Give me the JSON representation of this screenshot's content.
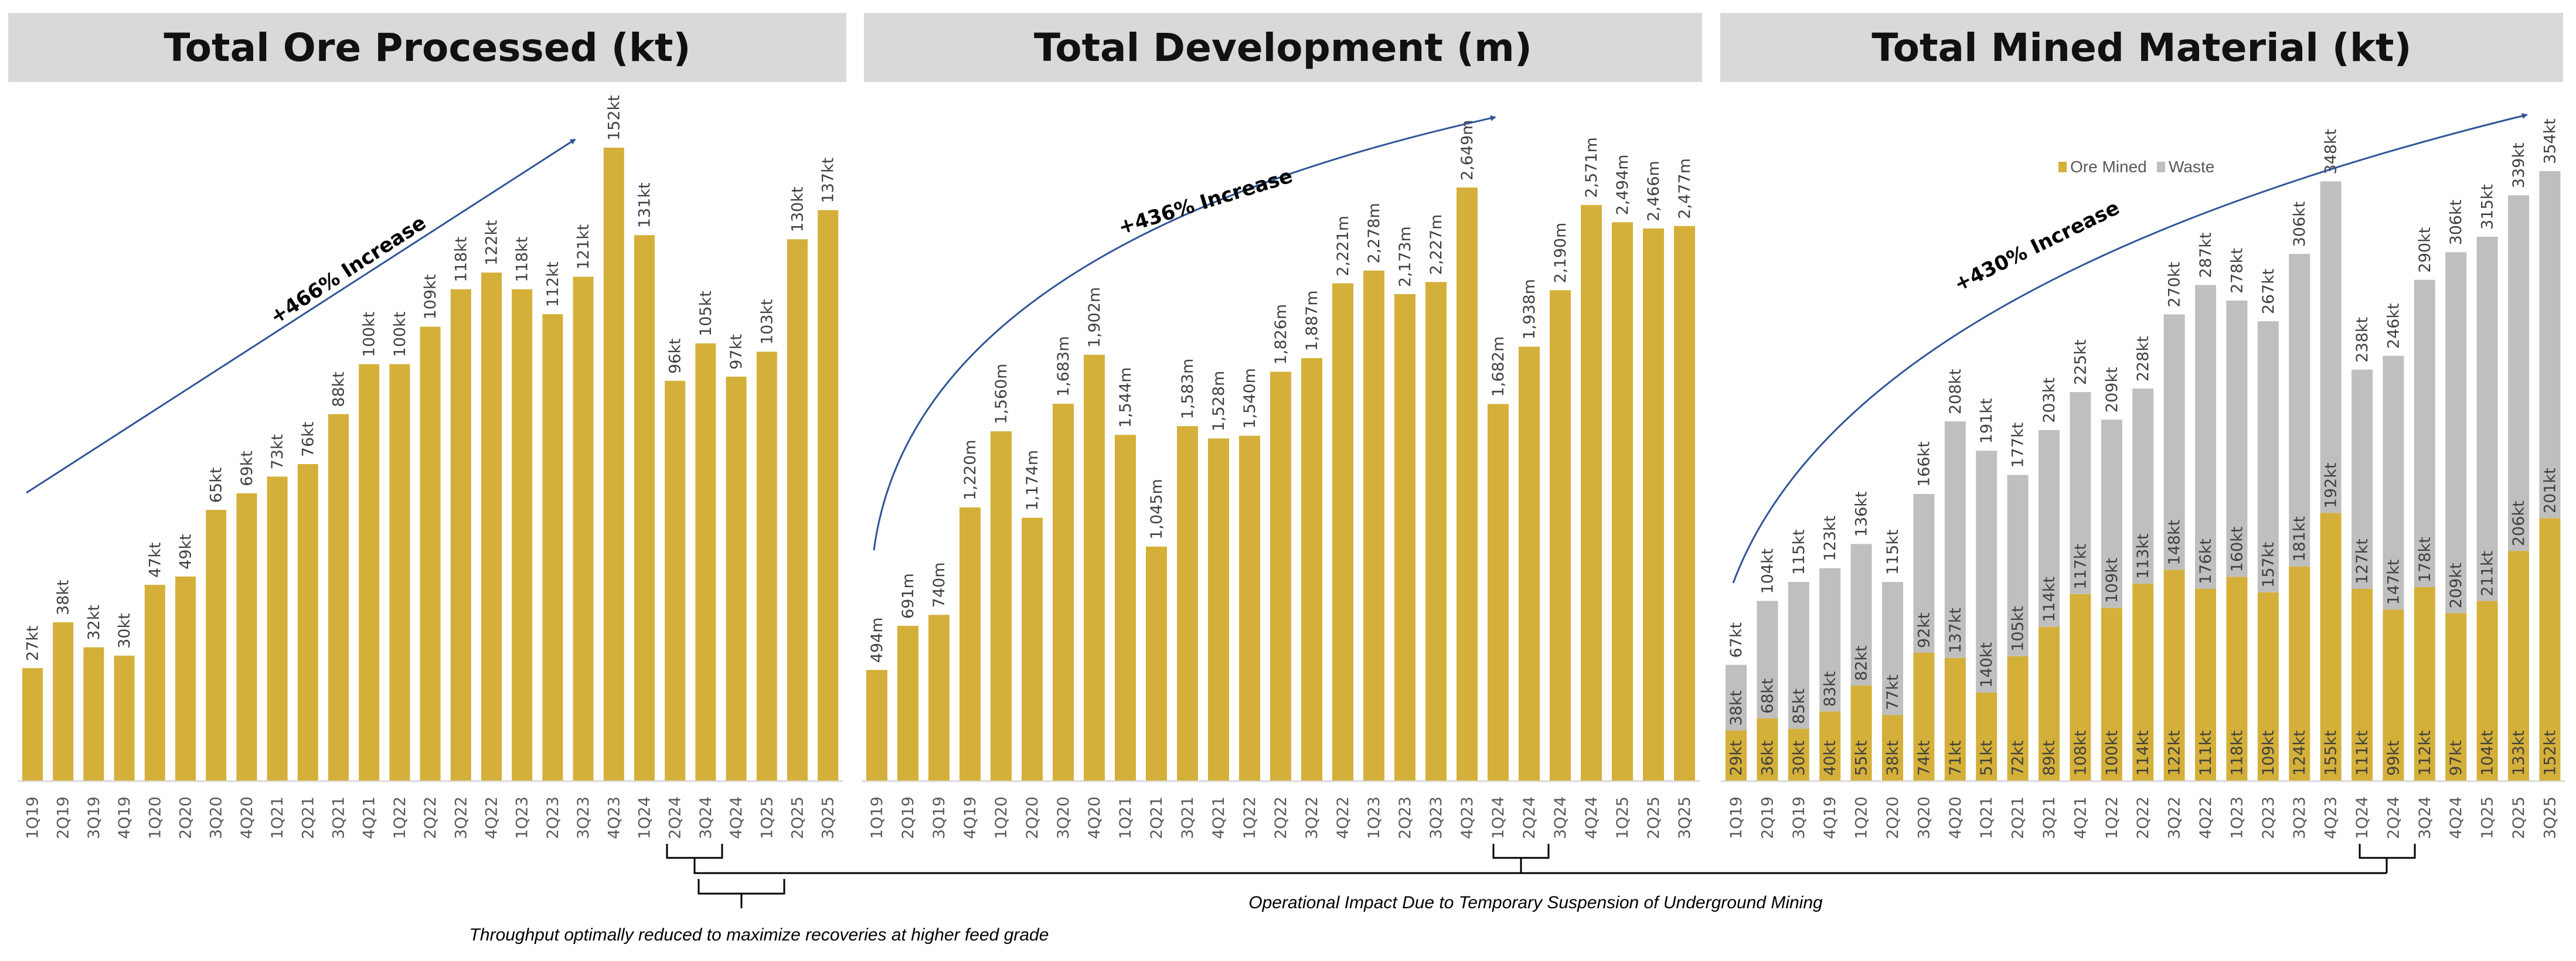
{
  "colors": {
    "ore": "#D4B03A",
    "waste": "#BFBFBF",
    "arrow": "#2F5597",
    "title_bg": "#D9D9D9"
  },
  "categories": [
    "1Q19",
    "2Q19",
    "3Q19",
    "4Q19",
    "1Q20",
    "2Q20",
    "3Q20",
    "4Q20",
    "1Q21",
    "2Q21",
    "3Q21",
    "4Q21",
    "1Q22",
    "2Q22",
    "3Q22",
    "4Q22",
    "1Q23",
    "2Q23",
    "3Q23",
    "4Q23",
    "1Q24",
    "2Q24",
    "3Q24",
    "4Q24",
    "1Q25",
    "2Q25",
    "3Q25"
  ],
  "chart_data": [
    {
      "type": "bar",
      "title": "Total Ore Processed (kt)",
      "unit": "kt",
      "annotation": "+466% Increase",
      "values": [
        27,
        38,
        32,
        30,
        47,
        49,
        65,
        69,
        73,
        76,
        88,
        100,
        100,
        109,
        118,
        122,
        118,
        112,
        121,
        152,
        131,
        96,
        105,
        97,
        103,
        130,
        137
      ],
      "labels": [
        "27kt",
        "38kt",
        "32kt",
        "30kt",
        "47kt",
        "49kt",
        "65kt",
        "69kt",
        "73kt",
        "76kt",
        "88kt",
        "100kt",
        "100kt",
        "109kt",
        "118kt",
        "122kt",
        "118kt",
        "112kt",
        "121kt",
        "152kt",
        "131kt",
        "96kt",
        "105kt",
        "97kt",
        "103kt",
        "130kt",
        "137kt"
      ],
      "grid": false
    },
    {
      "type": "bar",
      "title": "Total Development (m)",
      "unit": "m",
      "annotation": "+436% Increase",
      "values": [
        494,
        691,
        740,
        1220,
        1560,
        1174,
        1683,
        1902,
        1544,
        1045,
        1583,
        1528,
        1540,
        1826,
        1887,
        2221,
        2278,
        2173,
        2227,
        2649,
        1682,
        1938,
        2190,
        2571,
        2494,
        2466,
        2477
      ],
      "labels": [
        "494m",
        "691m",
        "740m",
        "1,220m",
        "1,560m",
        "1,174m",
        "1,683m",
        "1,902m",
        "1,544m",
        "1,045m",
        "1,583m",
        "1,528m",
        "1,540m",
        "1,826m",
        "1,887m",
        "2,221m",
        "2,278m",
        "2,173m",
        "2,227m",
        "2,649m",
        "1,682m",
        "1,938m",
        "2,190m",
        "2,571m",
        "2,494m",
        "2,466m",
        "2,477m"
      ],
      "grid": false
    },
    {
      "type": "bar",
      "stacked": true,
      "title": "Total Mined Material (kt)",
      "unit": "kt",
      "annotation": "+430% Increase",
      "legend_position": "top-center",
      "series": [
        {
          "name": "Ore Mined",
          "values": [
            29,
            36,
            30,
            40,
            55,
            38,
            74,
            71,
            51,
            72,
            89,
            108,
            100,
            114,
            122,
            111,
            118,
            109,
            124,
            155,
            111,
            99,
            112,
            97,
            104,
            133,
            152
          ]
        },
        {
          "name": "Waste",
          "values": [
            38,
            68,
            85,
            83,
            82,
            77,
            92,
            137,
            140,
            105,
            114,
            117,
            109,
            113,
            148,
            176,
            160,
            157,
            181,
            192,
            127,
            147,
            178,
            209,
            211,
            206,
            201
          ]
        }
      ],
      "totals": [
        67,
        104,
        115,
        123,
        136,
        115,
        166,
        208,
        191,
        177,
        203,
        225,
        209,
        228,
        270,
        287,
        278,
        267,
        306,
        348,
        238,
        246,
        290,
        306,
        315,
        339,
        354
      ],
      "grid": false
    }
  ],
  "notes": {
    "throughput": "Throughput optimally reduced to maximize recoveries at higher feed grade",
    "operational": "Operational Impact Due to Temporary Suspension of Underground Mining"
  }
}
